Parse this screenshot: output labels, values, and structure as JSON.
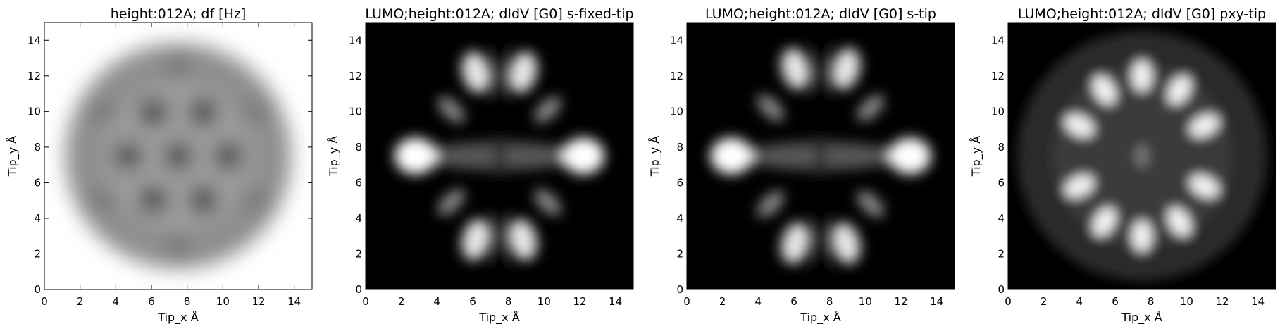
{
  "figure": {
    "background": "#ffffff"
  },
  "chart_data": [
    {
      "type": "heatmap",
      "title": "height:012A; df [Hz]",
      "xlabel": "Tip_x Å",
      "ylabel": "Tip_y Å",
      "xlim": [
        0,
        15
      ],
      "ylim": [
        0,
        15
      ],
      "xticks": [
        "0",
        "2",
        "4",
        "6",
        "8",
        "10",
        "12",
        "14"
      ],
      "yticks": [
        "0",
        "2",
        "4",
        "6",
        "8",
        "10",
        "12",
        "14"
      ],
      "colormap": "gray",
      "grid": false,
      "legend": "none",
      "pattern": "df",
      "features": {
        "background_level": 1.0,
        "disc_center": [
          7.5,
          7.5
        ],
        "disc_radius_A": 6.8,
        "dark_spots_A": [
          [
            7.5,
            7.5
          ],
          [
            6.1,
            5.05
          ],
          [
            8.9,
            5.05
          ],
          [
            6.1,
            9.95
          ],
          [
            8.9,
            9.95
          ],
          [
            4.7,
            7.5
          ],
          [
            10.3,
            7.5
          ]
        ]
      }
    },
    {
      "type": "heatmap",
      "title": "LUMO;height:012A; dIdV [G0] s-fixed-tip",
      "xlabel": "Tip_x Å",
      "ylabel": "Tip_y Å",
      "xlim": [
        0,
        15
      ],
      "ylim": [
        0,
        15
      ],
      "xticks": [
        "0",
        "2",
        "4",
        "6",
        "8",
        "10",
        "12",
        "14"
      ],
      "yticks": [
        "0",
        "2",
        "4",
        "6",
        "8",
        "10",
        "12",
        "14"
      ],
      "colormap": "gray",
      "grid": false,
      "legend": "none",
      "pattern": "s",
      "features": {
        "bright_lobes_A": [
          [
            2.8,
            7.5
          ],
          [
            12.2,
            7.5
          ],
          [
            6.2,
            12.2
          ],
          [
            8.8,
            12.2
          ],
          [
            6.2,
            2.8
          ],
          [
            8.8,
            2.8
          ],
          [
            4.8,
            10.1
          ],
          [
            10.2,
            10.1
          ],
          [
            4.8,
            4.9
          ],
          [
            10.2,
            4.9
          ]
        ]
      }
    },
    {
      "type": "heatmap",
      "title": "LUMO;height:012A; dIdV [G0] s-tip",
      "xlabel": "Tip_x Å",
      "ylabel": "Tip_y Å",
      "xlim": [
        0,
        15
      ],
      "ylim": [
        0,
        15
      ],
      "xticks": [
        "0",
        "2",
        "4",
        "6",
        "8",
        "10",
        "12",
        "14"
      ],
      "yticks": [
        "0",
        "2",
        "4",
        "6",
        "8",
        "10",
        "12",
        "14"
      ],
      "colormap": "gray",
      "grid": false,
      "legend": "none",
      "pattern": "s",
      "features": {
        "bright_lobes_A": [
          [
            2.5,
            7.5
          ],
          [
            12.5,
            7.5
          ],
          [
            6.1,
            12.4
          ],
          [
            8.9,
            12.4
          ],
          [
            6.1,
            2.6
          ],
          [
            8.9,
            2.6
          ],
          [
            4.7,
            10.2
          ],
          [
            10.3,
            10.2
          ],
          [
            4.7,
            4.8
          ],
          [
            10.3,
            4.8
          ]
        ]
      }
    },
    {
      "type": "heatmap",
      "title": "LUMO;height:012A; dIdV [G0] pxy-tip",
      "xlabel": "Tip_x Å",
      "ylabel": "Tip_y Å",
      "xlim": [
        0,
        15
      ],
      "ylim": [
        0,
        15
      ],
      "xticks": [
        "0",
        "2",
        "4",
        "6",
        "8",
        "10",
        "12",
        "14"
      ],
      "yticks": [
        "0",
        "2",
        "4",
        "6",
        "8",
        "10",
        "12",
        "14"
      ],
      "colormap": "gray",
      "grid": false,
      "legend": "none",
      "pattern": "pxy",
      "features": {
        "bright_lobes_A": [
          [
            7.5,
            12.0
          ],
          [
            7.5,
            3.0
          ],
          [
            5.4,
            11.2
          ],
          [
            9.6,
            11.2
          ],
          [
            5.4,
            3.8
          ],
          [
            9.6,
            3.8
          ],
          [
            4.0,
            9.2
          ],
          [
            11.0,
            9.2
          ],
          [
            4.0,
            5.8
          ],
          [
            11.0,
            5.8
          ],
          [
            7.5,
            7.5
          ]
        ]
      }
    }
  ]
}
